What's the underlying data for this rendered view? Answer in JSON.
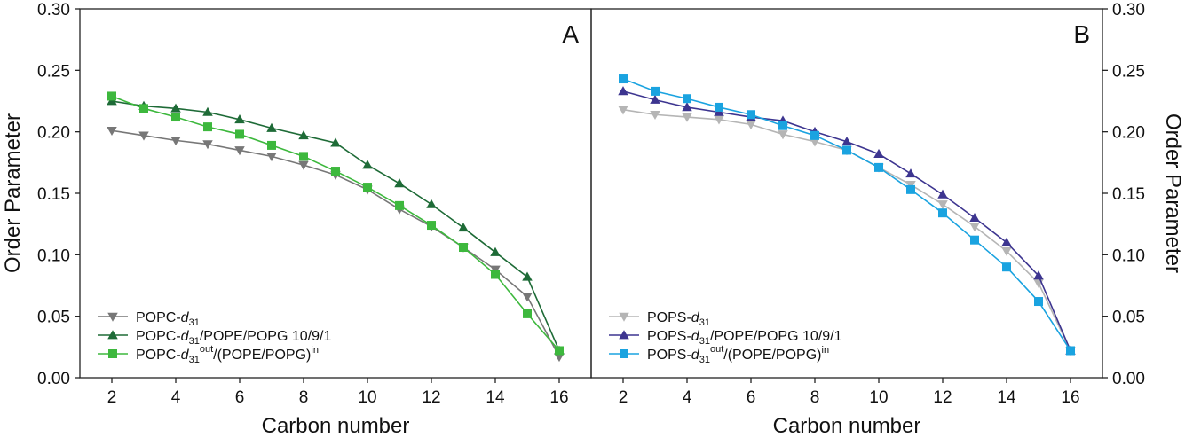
{
  "chart_data": [
    {
      "type": "line",
      "panel_label": "A",
      "xlabel": "Carbon number",
      "ylabel": "Order Parameter",
      "xlim": [
        1,
        17
      ],
      "ylim": [
        0,
        0.3
      ],
      "xticks": [
        "2",
        "4",
        "6",
        "8",
        "10",
        "12",
        "14",
        "16"
      ],
      "yticks": [
        "0.00",
        "0.05",
        "0.10",
        "0.15",
        "0.20",
        "0.25",
        "0.30"
      ],
      "yaxis_side": "left",
      "legend_position": "bottom-left",
      "x": [
        2,
        3,
        4,
        5,
        6,
        7,
        8,
        9,
        10,
        11,
        12,
        13,
        14,
        15,
        16
      ],
      "series": [
        {
          "name": "POPC-d31",
          "legend": {
            "base": "POPC-",
            "italic": "d",
            "sub": "31",
            "sup": "",
            "tail": "",
            "sup2": ""
          },
          "color": "#777777",
          "marker": "triangle-down",
          "values": [
            0.201,
            0.197,
            0.193,
            0.19,
            0.185,
            0.18,
            0.173,
            0.165,
            0.153,
            0.137,
            0.123,
            0.106,
            0.088,
            0.066,
            0.017
          ]
        },
        {
          "name": "POPC-d31/POPE/POPG 10/9/1",
          "legend": {
            "base": "POPC-",
            "italic": "d",
            "sub": "31",
            "sup": "",
            "tail": "/POPE/POPG 10/9/1",
            "sup2": ""
          },
          "color": "#1e6b37",
          "marker": "triangle-up",
          "values": [
            0.225,
            0.221,
            0.219,
            0.216,
            0.21,
            0.203,
            0.197,
            0.191,
            0.173,
            0.158,
            0.141,
            0.122,
            0.102,
            0.082,
            0.022
          ]
        },
        {
          "name": "POPC-d31out/(POPE/POPG)in",
          "legend": {
            "base": "POPC-",
            "italic": "d",
            "sub": "31",
            "sup": "out",
            "tail": "/(POPE/POPG)",
            "sup2": "in"
          },
          "color": "#3db83d",
          "marker": "square",
          "values": [
            0.229,
            0.219,
            0.212,
            0.204,
            0.198,
            0.189,
            0.18,
            0.168,
            0.155,
            0.14,
            0.124,
            0.106,
            0.084,
            0.052,
            0.022
          ]
        }
      ]
    },
    {
      "type": "line",
      "panel_label": "B",
      "xlabel": "Carbon number",
      "ylabel": "Order Parameter",
      "xlim": [
        1,
        17
      ],
      "ylim": [
        0,
        0.3
      ],
      "xticks": [
        "2",
        "4",
        "6",
        "8",
        "10",
        "12",
        "14",
        "16"
      ],
      "yticks": [
        "0.00",
        "0.05",
        "0.10",
        "0.15",
        "0.20",
        "0.25",
        "0.30"
      ],
      "yaxis_side": "right",
      "legend_position": "bottom-left",
      "x": [
        2,
        3,
        4,
        5,
        6,
        7,
        8,
        9,
        10,
        11,
        12,
        13,
        14,
        15,
        16
      ],
      "series": [
        {
          "name": "POPS-d31",
          "legend": {
            "base": "POPS-",
            "italic": "d",
            "sub": "31",
            "sup": "",
            "tail": "",
            "sup2": ""
          },
          "color": "#b5b5b5",
          "marker": "triangle-down",
          "values": [
            0.218,
            0.214,
            0.212,
            0.21,
            0.206,
            0.198,
            0.192,
            0.185,
            0.171,
            0.157,
            0.141,
            0.123,
            0.103,
            0.077,
            0.022
          ]
        },
        {
          "name": "POPS-d31/POPE/POPG 10/9/1",
          "legend": {
            "base": "POPS-",
            "italic": "d",
            "sub": "31",
            "sup": "",
            "tail": "/POPE/POPG 10/9/1",
            "sup2": ""
          },
          "color": "#3d3590",
          "marker": "triangle-up",
          "values": [
            0.233,
            0.226,
            0.22,
            0.216,
            0.212,
            0.209,
            0.2,
            0.192,
            0.182,
            0.166,
            0.149,
            0.13,
            0.11,
            0.083,
            0.022
          ]
        },
        {
          "name": "POPS-d31out/(POPE/POPG)in",
          "legend": {
            "base": "POPS-",
            "italic": "d",
            "sub": "31",
            "sup": "out",
            "tail": "/(POPE/POPG)",
            "sup2": "in"
          },
          "color": "#1aa3e0",
          "marker": "square",
          "values": [
            0.243,
            0.233,
            0.227,
            0.22,
            0.214,
            0.205,
            0.197,
            0.185,
            0.171,
            0.153,
            0.134,
            0.112,
            0.09,
            0.062,
            0.022
          ]
        }
      ]
    }
  ]
}
